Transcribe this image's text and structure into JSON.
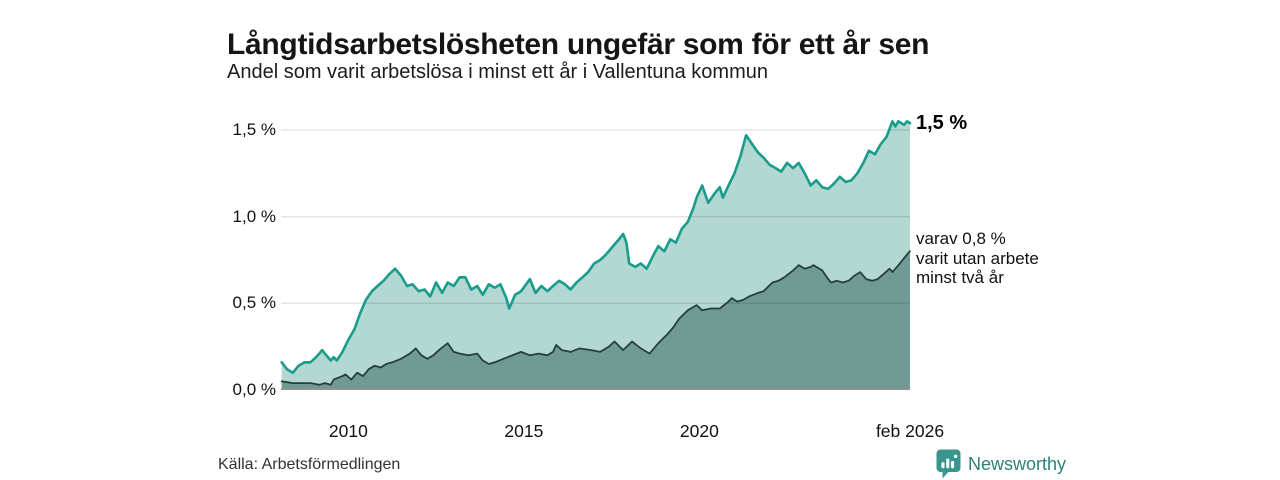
{
  "header": {
    "title": "Långtidsarbetslösheten ungefär som för ett år sen",
    "subtitle": "Andel som varit arbetslösa i minst ett år i Vallentuna kommun"
  },
  "annotations": {
    "series1_label": "1,5 %",
    "series2_lines": [
      "varav 0,8 %",
      "varit utan arbete",
      "minst två år"
    ]
  },
  "footer": {
    "source": "Källa: Arbetsförmedlingen",
    "brand": "Newsworthy"
  },
  "colors": {
    "line_one_year": "#1a9c8c",
    "fill_one_year": "#b2d8d1",
    "line_two_year": "#24403d",
    "fill_two_year": "#6f9b94",
    "gridline": "#cfcfcf",
    "axis_line": "#919191",
    "brand_teal": "#2d7f78",
    "brand_icon": "#38968c",
    "text": "#151515"
  },
  "chart_data": {
    "type": "area",
    "title": "Långtidsarbetslösheten ungefär som för ett år sen",
    "subtitle": "Andel som varit arbetslösa i minst ett år i Vallentuna kommun",
    "grid": true,
    "x_axis": {
      "range": [
        2008.08,
        2026.0
      ],
      "ticks": [
        "2010",
        "2015",
        "2020",
        "feb 2026"
      ],
      "tick_years": [
        2010,
        2015,
        2020,
        2026.0
      ]
    },
    "y_axis": {
      "range": [
        0,
        1.5
      ],
      "ticks": [
        "0,0 %",
        "0,5 %",
        "1,0 %",
        "1,5 %"
      ],
      "tick_values": [
        0,
        0.5,
        1.0,
        1.5
      ],
      "unit": "%"
    },
    "series": [
      {
        "name": "Andel som varit arbetslösa minst ett år",
        "end_label": "1,5 %",
        "end_value": 1.5,
        "line_color": "#1a9c8c",
        "fill_color": "#b2d8d1",
        "points": [
          [
            2008.1,
            0.16
          ],
          [
            2008.25,
            0.12
          ],
          [
            2008.42,
            0.1
          ],
          [
            2008.58,
            0.14
          ],
          [
            2008.75,
            0.16
          ],
          [
            2008.92,
            0.16
          ],
          [
            2009.08,
            0.19
          ],
          [
            2009.17,
            0.21
          ],
          [
            2009.25,
            0.23
          ],
          [
            2009.33,
            0.21
          ],
          [
            2009.5,
            0.17
          ],
          [
            2009.58,
            0.19
          ],
          [
            2009.67,
            0.17
          ],
          [
            2009.83,
            0.22
          ],
          [
            2010.0,
            0.29
          ],
          [
            2010.17,
            0.35
          ],
          [
            2010.33,
            0.44
          ],
          [
            2010.5,
            0.52
          ],
          [
            2010.67,
            0.57
          ],
          [
            2010.83,
            0.6
          ],
          [
            2011.0,
            0.63
          ],
          [
            2011.17,
            0.67
          ],
          [
            2011.33,
            0.7
          ],
          [
            2011.5,
            0.66
          ],
          [
            2011.67,
            0.6
          ],
          [
            2011.83,
            0.61
          ],
          [
            2012.0,
            0.57
          ],
          [
            2012.17,
            0.58
          ],
          [
            2012.33,
            0.54
          ],
          [
            2012.5,
            0.62
          ],
          [
            2012.67,
            0.56
          ],
          [
            2012.83,
            0.62
          ],
          [
            2013.0,
            0.6
          ],
          [
            2013.17,
            0.65
          ],
          [
            2013.33,
            0.65
          ],
          [
            2013.5,
            0.58
          ],
          [
            2013.67,
            0.6
          ],
          [
            2013.83,
            0.55
          ],
          [
            2014.0,
            0.61
          ],
          [
            2014.17,
            0.59
          ],
          [
            2014.33,
            0.61
          ],
          [
            2014.5,
            0.53
          ],
          [
            2014.58,
            0.47
          ],
          [
            2014.75,
            0.55
          ],
          [
            2014.92,
            0.57
          ],
          [
            2015.17,
            0.64
          ],
          [
            2015.33,
            0.56
          ],
          [
            2015.5,
            0.6
          ],
          [
            2015.67,
            0.57
          ],
          [
            2015.83,
            0.6
          ],
          [
            2016.0,
            0.63
          ],
          [
            2016.17,
            0.61
          ],
          [
            2016.33,
            0.58
          ],
          [
            2016.5,
            0.62
          ],
          [
            2016.67,
            0.65
          ],
          [
            2016.83,
            0.68
          ],
          [
            2017.0,
            0.73
          ],
          [
            2017.17,
            0.75
          ],
          [
            2017.33,
            0.78
          ],
          [
            2017.5,
            0.82
          ],
          [
            2017.67,
            0.86
          ],
          [
            2017.83,
            0.9
          ],
          [
            2017.92,
            0.85
          ],
          [
            2018.0,
            0.73
          ],
          [
            2018.17,
            0.71
          ],
          [
            2018.33,
            0.73
          ],
          [
            2018.5,
            0.7
          ],
          [
            2018.67,
            0.77
          ],
          [
            2018.83,
            0.83
          ],
          [
            2019.0,
            0.8
          ],
          [
            2019.17,
            0.87
          ],
          [
            2019.33,
            0.85
          ],
          [
            2019.5,
            0.93
          ],
          [
            2019.67,
            0.97
          ],
          [
            2019.83,
            1.05
          ],
          [
            2019.92,
            1.11
          ],
          [
            2020.08,
            1.18
          ],
          [
            2020.25,
            1.08
          ],
          [
            2020.42,
            1.13
          ],
          [
            2020.58,
            1.17
          ],
          [
            2020.67,
            1.11
          ],
          [
            2020.83,
            1.18
          ],
          [
            2021.0,
            1.25
          ],
          [
            2021.17,
            1.35
          ],
          [
            2021.33,
            1.47
          ],
          [
            2021.5,
            1.42
          ],
          [
            2021.67,
            1.37
          ],
          [
            2021.83,
            1.34
          ],
          [
            2022.0,
            1.3
          ],
          [
            2022.17,
            1.28
          ],
          [
            2022.33,
            1.26
          ],
          [
            2022.5,
            1.31
          ],
          [
            2022.67,
            1.28
          ],
          [
            2022.83,
            1.31
          ],
          [
            2023.0,
            1.25
          ],
          [
            2023.17,
            1.18
          ],
          [
            2023.33,
            1.21
          ],
          [
            2023.5,
            1.17
          ],
          [
            2023.67,
            1.16
          ],
          [
            2023.83,
            1.19
          ],
          [
            2024.0,
            1.23
          ],
          [
            2024.17,
            1.2
          ],
          [
            2024.33,
            1.21
          ],
          [
            2024.5,
            1.25
          ],
          [
            2024.67,
            1.31
          ],
          [
            2024.83,
            1.38
          ],
          [
            2025.0,
            1.36
          ],
          [
            2025.17,
            1.42
          ],
          [
            2025.33,
            1.46
          ],
          [
            2025.5,
            1.55
          ],
          [
            2025.58,
            1.52
          ],
          [
            2025.67,
            1.55
          ],
          [
            2025.83,
            1.53
          ],
          [
            2025.92,
            1.55
          ],
          [
            2026.0,
            1.54
          ]
        ]
      },
      {
        "name": "varav utan arbete minst två år",
        "end_label": "varav 0,8 % varit utan arbete minst två år",
        "end_value": 0.8,
        "line_color": "#24403d",
        "fill_color": "#6f9b94",
        "points": [
          [
            2008.1,
            0.05
          ],
          [
            2008.42,
            0.04
          ],
          [
            2008.67,
            0.04
          ],
          [
            2008.92,
            0.04
          ],
          [
            2009.17,
            0.03
          ],
          [
            2009.33,
            0.04
          ],
          [
            2009.5,
            0.03
          ],
          [
            2009.58,
            0.06
          ],
          [
            2009.83,
            0.08
          ],
          [
            2009.92,
            0.09
          ],
          [
            2010.08,
            0.06
          ],
          [
            2010.25,
            0.1
          ],
          [
            2010.42,
            0.08
          ],
          [
            2010.58,
            0.12
          ],
          [
            2010.75,
            0.14
          ],
          [
            2010.92,
            0.13
          ],
          [
            2011.08,
            0.15
          ],
          [
            2011.25,
            0.16
          ],
          [
            2011.5,
            0.18
          ],
          [
            2011.75,
            0.21
          ],
          [
            2011.92,
            0.24
          ],
          [
            2012.08,
            0.2
          ],
          [
            2012.25,
            0.18
          ],
          [
            2012.42,
            0.2
          ],
          [
            2012.58,
            0.23
          ],
          [
            2012.83,
            0.27
          ],
          [
            2013.0,
            0.22
          ],
          [
            2013.17,
            0.21
          ],
          [
            2013.42,
            0.2
          ],
          [
            2013.67,
            0.21
          ],
          [
            2013.83,
            0.17
          ],
          [
            2014.0,
            0.15
          ],
          [
            2014.17,
            0.16
          ],
          [
            2014.42,
            0.18
          ],
          [
            2014.67,
            0.2
          ],
          [
            2014.92,
            0.22
          ],
          [
            2015.17,
            0.2
          ],
          [
            2015.42,
            0.21
          ],
          [
            2015.67,
            0.2
          ],
          [
            2015.83,
            0.22
          ],
          [
            2015.92,
            0.26
          ],
          [
            2016.08,
            0.23
          ],
          [
            2016.33,
            0.22
          ],
          [
            2016.58,
            0.24
          ],
          [
            2016.92,
            0.23
          ],
          [
            2017.17,
            0.22
          ],
          [
            2017.42,
            0.25
          ],
          [
            2017.58,
            0.28
          ],
          [
            2017.83,
            0.23
          ],
          [
            2018.08,
            0.28
          ],
          [
            2018.33,
            0.24
          ],
          [
            2018.58,
            0.21
          ],
          [
            2018.83,
            0.27
          ],
          [
            2019.08,
            0.32
          ],
          [
            2019.25,
            0.36
          ],
          [
            2019.42,
            0.41
          ],
          [
            2019.67,
            0.46
          ],
          [
            2019.92,
            0.49
          ],
          [
            2020.08,
            0.46
          ],
          [
            2020.33,
            0.47
          ],
          [
            2020.58,
            0.47
          ],
          [
            2020.83,
            0.51
          ],
          [
            2020.92,
            0.53
          ],
          [
            2021.08,
            0.51
          ],
          [
            2021.25,
            0.52
          ],
          [
            2021.42,
            0.54
          ],
          [
            2021.67,
            0.56
          ],
          [
            2021.83,
            0.57
          ],
          [
            2022.08,
            0.62
          ],
          [
            2022.25,
            0.63
          ],
          [
            2022.42,
            0.65
          ],
          [
            2022.67,
            0.69
          ],
          [
            2022.83,
            0.72
          ],
          [
            2023.0,
            0.7
          ],
          [
            2023.17,
            0.71
          ],
          [
            2023.25,
            0.72
          ],
          [
            2023.5,
            0.69
          ],
          [
            2023.67,
            0.64
          ],
          [
            2023.75,
            0.62
          ],
          [
            2023.92,
            0.63
          ],
          [
            2024.08,
            0.62
          ],
          [
            2024.25,
            0.63
          ],
          [
            2024.42,
            0.66
          ],
          [
            2024.58,
            0.68
          ],
          [
            2024.75,
            0.64
          ],
          [
            2024.92,
            0.63
          ],
          [
            2025.08,
            0.64
          ],
          [
            2025.25,
            0.67
          ],
          [
            2025.42,
            0.7
          ],
          [
            2025.5,
            0.68
          ],
          [
            2025.67,
            0.72
          ],
          [
            2025.83,
            0.76
          ],
          [
            2025.95,
            0.79
          ],
          [
            2026.0,
            0.8
          ]
        ]
      }
    ]
  }
}
